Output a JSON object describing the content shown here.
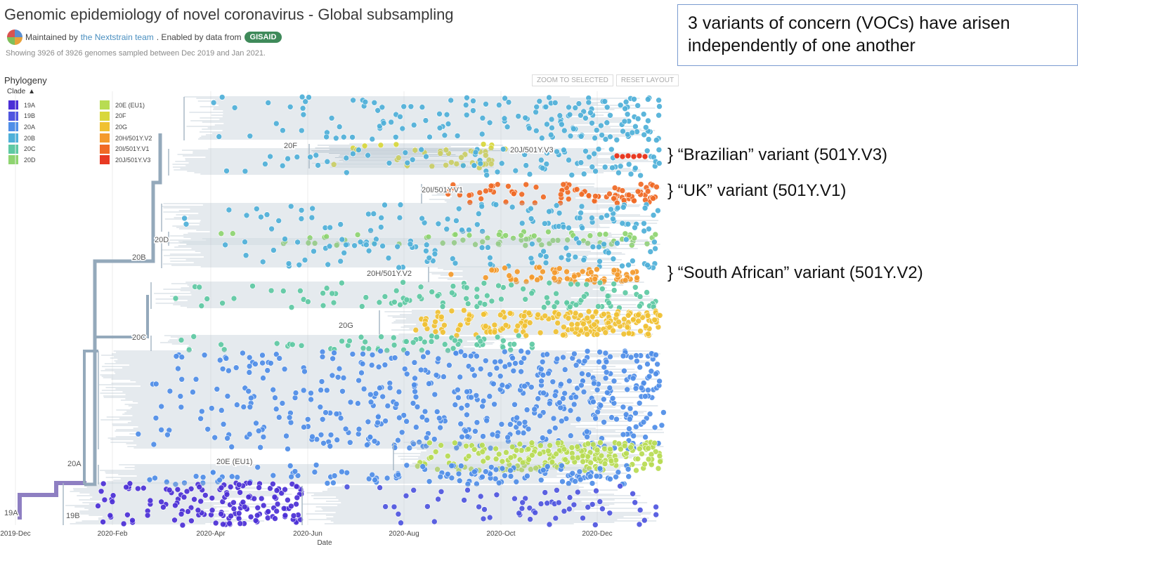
{
  "header": {
    "title": "Genomic epidemiology of novel coronavirus - Global subsampling",
    "maintained_prefix": "Maintained by",
    "maintained_link": "the Nextstrain team",
    "enabled_text": ". Enabled by data from",
    "gisaid": "GISAID",
    "showing": "Showing 3926 of 3926 genomes sampled between Dec 2019 and Jan 2021."
  },
  "panel": {
    "title": "Phylogeny",
    "zoom_label": "ZOOM TO SELECTED",
    "reset_label": "RESET LAYOUT",
    "clade_label": "Clade"
  },
  "legend": [
    {
      "label": "19A",
      "color": "#4b2fd6"
    },
    {
      "label": "19B",
      "color": "#4f55e0"
    },
    {
      "label": "20A",
      "color": "#4f8ee8"
    },
    {
      "label": "20B",
      "color": "#4fb0d9"
    },
    {
      "label": "20C",
      "color": "#5ec9a3"
    },
    {
      "label": "20D",
      "color": "#8fd470"
    },
    {
      "label": "20E (EU1)",
      "color": "#b8dc52"
    },
    {
      "label": "20F",
      "color": "#d8d73b"
    },
    {
      "label": "20G",
      "color": "#f0c132"
    },
    {
      "label": "20H/501Y.V2",
      "color": "#f49a2c"
    },
    {
      "label": "20I/501Y.V1",
      "color": "#f06a25"
    },
    {
      "label": "20J/501Y.V3",
      "color": "#e83a23"
    }
  ],
  "clade_labels": [
    "19A",
    "19B",
    "20A",
    "20B",
    "20C",
    "20D",
    "20E (EU1)",
    "20F",
    "20G",
    "20H/501Y.V2",
    "20I/501Y.V1",
    "20J/501Y.V3"
  ],
  "axis": {
    "label": "Date",
    "ticks": [
      "2019-Dec",
      "2020-Feb",
      "2020-Apr",
      "2020-Jun",
      "2020-Aug",
      "2020-Oct",
      "2020-Dec"
    ]
  },
  "voc_box": "3 variants of concern (VOCs) have arisen independently of one another",
  "annotations": [
    {
      "text": "}  “Brazilian” variant (501Y.V3)"
    },
    {
      "text": "}  “UK” variant (501Y.V1)"
    },
    {
      "text": "}  “South African” variant (501Y.V2)"
    }
  ]
}
